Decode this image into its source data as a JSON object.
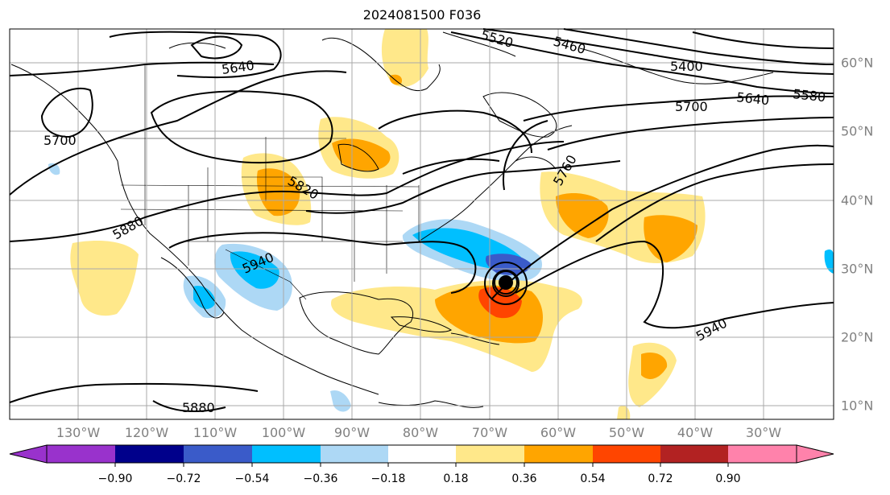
{
  "title": "2024081500 F036",
  "map": {
    "lon_labels": [
      "130°W",
      "120°W",
      "110°W",
      "100°W",
      "90°W",
      "80°W",
      "70°W",
      "60°W",
      "50°W",
      "40°W",
      "30°W"
    ],
    "lat_labels": [
      "60°N",
      "50°N",
      "40°N",
      "30°N",
      "20°N",
      "10°N"
    ],
    "contour_labels": [
      "5460",
      "5400",
      "5640",
      "5580",
      "5700",
      "5640",
      "5700",
      "5820",
      "5760",
      "5880",
      "5940",
      "5940",
      "5880",
      "5520"
    ],
    "storm_marker": "hurricane-center"
  },
  "colorbar": {
    "ticks": [
      "−0.90",
      "−0.72",
      "−0.54",
      "−0.36",
      "−0.18",
      "0.18",
      "0.36",
      "0.54",
      "0.72",
      "0.90"
    ],
    "colors": [
      "#9932cc",
      "#00008b",
      "#3a5bc9",
      "#00bfff",
      "#add8f5",
      "#ffffff",
      "#ffe88a",
      "#ffa500",
      "#ff4500",
      "#b22222",
      "#ff82ab"
    ]
  }
}
